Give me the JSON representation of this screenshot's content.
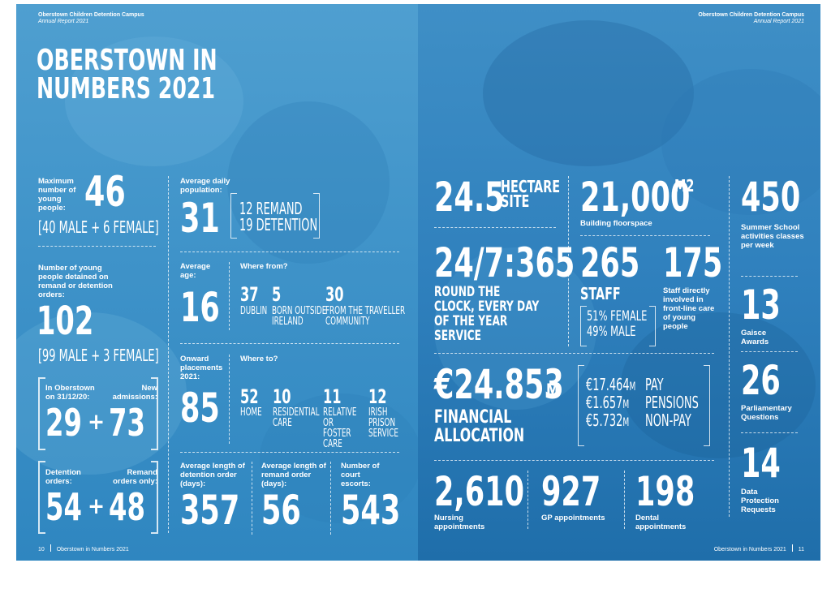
{
  "header": {
    "title": "Oberstown Children Detention Campus",
    "subtitle": "Annual Report 2021"
  },
  "title": {
    "line1": "OBERSTOWN IN",
    "line2": "NUMBERS 2021"
  },
  "left": {
    "max": {
      "label": "Maximum number of young people:",
      "value": "46",
      "breakdown": "[40 MALE + 6 FEMALE]"
    },
    "detained": {
      "label": "Number of young people detained on remand or detention orders:",
      "value": "102",
      "breakdown": "[99 MALE + 3 FEMALE]"
    },
    "in_oberstown": {
      "label": "In Oberstown on 31/12/20:",
      "value": "29"
    },
    "new_adm": {
      "label": "New admissions:",
      "value": "73"
    },
    "det_orders": {
      "label": "Detention orders:",
      "value": "54"
    },
    "remand_only": {
      "label": "Remand orders only:",
      "value": "48"
    },
    "plus": "+",
    "daily": {
      "label": "Average daily population:",
      "value": "31",
      "line1": "12 REMAND",
      "line2": "19 DETENTION"
    },
    "age": {
      "label": "Average age:",
      "value": "16",
      "where_label": "Where from?",
      "items": [
        {
          "num": "37",
          "text": "DUBLIN"
        },
        {
          "num": "5",
          "text": "BORN OUTSIDE IRELAND"
        },
        {
          "num": "30",
          "text": "FROM THE TRAVELLER COMMUNITY"
        }
      ]
    },
    "onward": {
      "label": "Onward placements 2021:",
      "value": "85",
      "where_label": "Where to?",
      "items": [
        {
          "num": "52",
          "text": "HOME"
        },
        {
          "num": "10",
          "text": "RESIDENTIAL CARE"
        },
        {
          "num": "11",
          "text": "RELATIVE OR FOSTER CARE"
        },
        {
          "num": "12",
          "text": "IRISH PRISON SERVICE"
        }
      ]
    },
    "det_len": {
      "label": "Average length of detention order (days):",
      "value": "357"
    },
    "rem_len": {
      "label": "Average length of remand order (days):",
      "value": "56"
    },
    "escorts": {
      "label": "Number of court escorts:",
      "value": "543"
    },
    "footer": {
      "page": "10",
      "text": "Oberstown in Numbers 2021"
    }
  },
  "right": {
    "site": {
      "value": "24.5",
      "unit": "HECTARE SITE"
    },
    "floor": {
      "value": "21,000",
      "unit": "M2",
      "label": "Building floorspace"
    },
    "summer": {
      "value": "450",
      "label": "Summer School activities classes per week"
    },
    "service": {
      "value": "24/7:365",
      "label": "ROUND THE CLOCK, EVERY DAY OF THE YEAR SERVICE"
    },
    "staff": {
      "value": "265",
      "label": "STAFF",
      "female": "51% FEMALE",
      "male": "49% MALE"
    },
    "frontline": {
      "value": "175",
      "label": "Staff directly involved in front-line care of young people"
    },
    "gaisce": {
      "value": "13",
      "label": "Gaisce Awards"
    },
    "finance": {
      "value": "€24.853",
      "unit": "M",
      "label": "FINANCIAL ALLOCATION",
      "items": [
        {
          "amount": "€17.464",
          "unit": "M",
          "text": "PAY"
        },
        {
          "amount": "€1.657",
          "unit": "M",
          "text": "PENSIONS"
        },
        {
          "amount": "€5.732",
          "unit": "M",
          "text": "NON-PAY"
        }
      ]
    },
    "pq": {
      "value": "26",
      "label": "Parliamentary Questions"
    },
    "nursing": {
      "value": "2,610",
      "label": "Nursing appointments"
    },
    "gp": {
      "value": "927",
      "label": "GP appointments"
    },
    "dental": {
      "value": "198",
      "label": "Dental appointments"
    },
    "dp": {
      "value": "14",
      "label": "Data Protection Requests"
    },
    "footer": {
      "text": "Oberstown in Numbers 2021",
      "page": "11"
    }
  }
}
